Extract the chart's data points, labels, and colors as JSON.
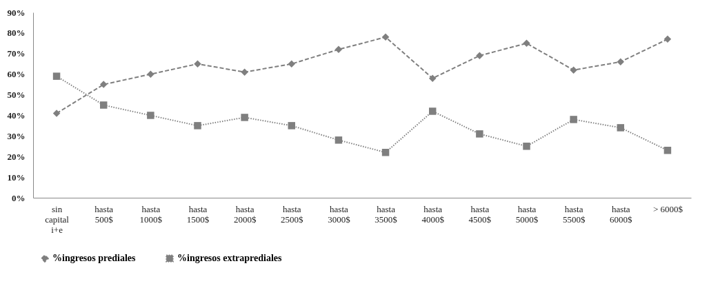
{
  "chart_data": {
    "type": "line",
    "categories": [
      "sin\ncapital\ni+e",
      "hasta\n500$",
      "hasta\n1000$",
      "hasta\n1500$",
      "hasta\n2000$",
      "hasta\n2500$",
      "hasta\n3000$",
      "hasta\n3500$",
      "hasta\n4000$",
      "hasta\n4500$",
      "hasta\n5000$",
      "hasta\n5500$",
      "hasta\n6000$",
      "> 6000$"
    ],
    "series": [
      {
        "name": "%ingresos prediales",
        "color": "#7f7f7f",
        "marker": "diamond",
        "line_style": "dashed",
        "values": [
          41,
          55,
          60,
          65,
          61,
          65,
          72,
          78,
          58,
          69,
          75,
          62,
          66,
          77
        ]
      },
      {
        "name": "%ingresos extraprediales",
        "color": "#7f7f7f",
        "marker": "square",
        "line_style": "dotted",
        "values": [
          59,
          45,
          40,
          35,
          39,
          35,
          28,
          22,
          42,
          31,
          25,
          38,
          34,
          23
        ]
      }
    ],
    "ylim": [
      0,
      90
    ],
    "yticks": [
      {
        "value": 0,
        "label": "0%"
      },
      {
        "value": 10,
        "label": "10%"
      },
      {
        "value": 20,
        "label": "20%"
      },
      {
        "value": 30,
        "label": "30%"
      },
      {
        "value": 40,
        "label": "40%"
      },
      {
        "value": 50,
        "label": "50%"
      },
      {
        "value": 60,
        "label": "60%"
      },
      {
        "value": 70,
        "label": "70%"
      },
      {
        "value": 80,
        "label": "80%"
      },
      {
        "value": 90,
        "label": "90%"
      }
    ],
    "grid": false,
    "legend": "bottom"
  }
}
